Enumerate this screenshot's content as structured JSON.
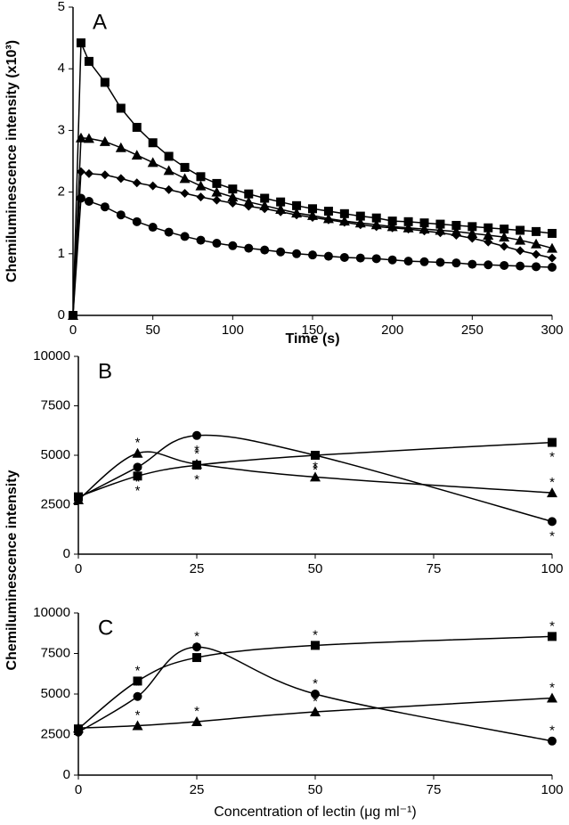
{
  "chart_data": [
    {
      "type": "line",
      "panel_label": "A",
      "x_label": "Time (s)",
      "y_label": "Chemiluminescence intensity (x10³)",
      "x": [
        0,
        5,
        10,
        20,
        30,
        40,
        50,
        60,
        70,
        80,
        90,
        100,
        110,
        120,
        130,
        140,
        150,
        160,
        170,
        180,
        190,
        200,
        210,
        220,
        230,
        240,
        250,
        260,
        270,
        280,
        290,
        300
      ],
      "xlim": [
        0,
        300
      ],
      "xticks": [
        0,
        50,
        100,
        150,
        200,
        250,
        300
      ],
      "ylim": [
        0,
        5
      ],
      "yticks": [
        0,
        1,
        2,
        3,
        4,
        5
      ],
      "smooth": false,
      "series": [
        {
          "marker": "square",
          "color": "#000000",
          "values": [
            0,
            4.42,
            4.12,
            3.78,
            3.36,
            3.05,
            2.8,
            2.58,
            2.4,
            2.25,
            2.14,
            2.05,
            1.97,
            1.9,
            1.84,
            1.78,
            1.73,
            1.69,
            1.65,
            1.61,
            1.58,
            1.53,
            1.52,
            1.5,
            1.48,
            1.46,
            1.44,
            1.42,
            1.4,
            1.38,
            1.36,
            1.33
          ]
        },
        {
          "marker": "triangle",
          "color": "#000000",
          "values": [
            0,
            2.88,
            2.87,
            2.82,
            2.72,
            2.6,
            2.48,
            2.35,
            2.22,
            2.1,
            2.0,
            1.92,
            1.84,
            1.78,
            1.72,
            1.66,
            1.62,
            1.57,
            1.53,
            1.5,
            1.47,
            1.44,
            1.42,
            1.4,
            1.38,
            1.36,
            1.33,
            1.3,
            1.27,
            1.22,
            1.16,
            1.09
          ]
        },
        {
          "marker": "diamond",
          "color": "#000000",
          "values": [
            0,
            2.33,
            2.3,
            2.28,
            2.22,
            2.15,
            2.1,
            2.04,
            1.98,
            1.92,
            1.87,
            1.82,
            1.77,
            1.73,
            1.68,
            1.63,
            1.59,
            1.55,
            1.51,
            1.47,
            1.44,
            1.42,
            1.4,
            1.37,
            1.34,
            1.3,
            1.25,
            1.19,
            1.12,
            1.05,
            0.99,
            0.93
          ]
        },
        {
          "marker": "circle",
          "color": "#000000",
          "values": [
            0,
            1.9,
            1.85,
            1.76,
            1.63,
            1.52,
            1.43,
            1.35,
            1.28,
            1.22,
            1.17,
            1.13,
            1.09,
            1.06,
            1.03,
            1.0,
            0.98,
            0.96,
            0.94,
            0.93,
            0.92,
            0.9,
            0.88,
            0.87,
            0.86,
            0.85,
            0.83,
            0.82,
            0.81,
            0.8,
            0.79,
            0.78
          ]
        }
      ]
    },
    {
      "type": "line",
      "panel_label": "B",
      "y_label": "Chemiluminescence intensity",
      "x": [
        0,
        12.5,
        25,
        50,
        100
      ],
      "xlim": [
        0,
        100
      ],
      "xticks": [
        0,
        25,
        50,
        75,
        100
      ],
      "ylim": [
        0,
        10000
      ],
      "yticks": [
        0,
        2500,
        5000,
        7500,
        10000
      ],
      "smooth": true,
      "series": [
        {
          "marker": "square",
          "color": "#000000",
          "values": [
            2900,
            3950,
            4500,
            5000,
            5650
          ],
          "annotations": [
            null,
            "*",
            "*",
            "*",
            "*"
          ]
        },
        {
          "marker": "triangle",
          "color": "#000000",
          "values": [
            2750,
            5100,
            4550,
            3900,
            3100
          ],
          "annotations": [
            null,
            "*",
            "*",
            "*",
            "*"
          ]
        },
        {
          "marker": "circle",
          "color": "#000000",
          "values": [
            2850,
            4400,
            6000,
            5000,
            1650
          ],
          "annotations": [
            null,
            "*",
            "*",
            "*",
            "*"
          ]
        }
      ]
    },
    {
      "type": "line",
      "panel_label": "C",
      "x_label": "Concentration of lectin (μg ml⁻¹)",
      "x": [
        0,
        12.5,
        25,
        50,
        100
      ],
      "xlim": [
        0,
        100
      ],
      "xticks": [
        0,
        25,
        50,
        75,
        100
      ],
      "ylim": [
        0,
        10000
      ],
      "yticks": [
        0,
        2500,
        5000,
        7500,
        10000
      ],
      "smooth": true,
      "series": [
        {
          "marker": "square",
          "color": "#000000",
          "values": [
            2850,
            5800,
            7250,
            8000,
            8550
          ],
          "annotations": [
            null,
            "*",
            "*",
            "*",
            "*"
          ]
        },
        {
          "marker": "circle",
          "color": "#000000",
          "values": [
            2650,
            4850,
            7900,
            5000,
            2100
          ],
          "annotations": [
            null,
            "*",
            "*",
            "*",
            "*"
          ]
        },
        {
          "marker": "triangle",
          "color": "#000000",
          "values": [
            2900,
            3050,
            3300,
            3900,
            4750
          ],
          "annotations": [
            null,
            "*",
            "*",
            "*",
            "*"
          ]
        }
      ]
    }
  ]
}
